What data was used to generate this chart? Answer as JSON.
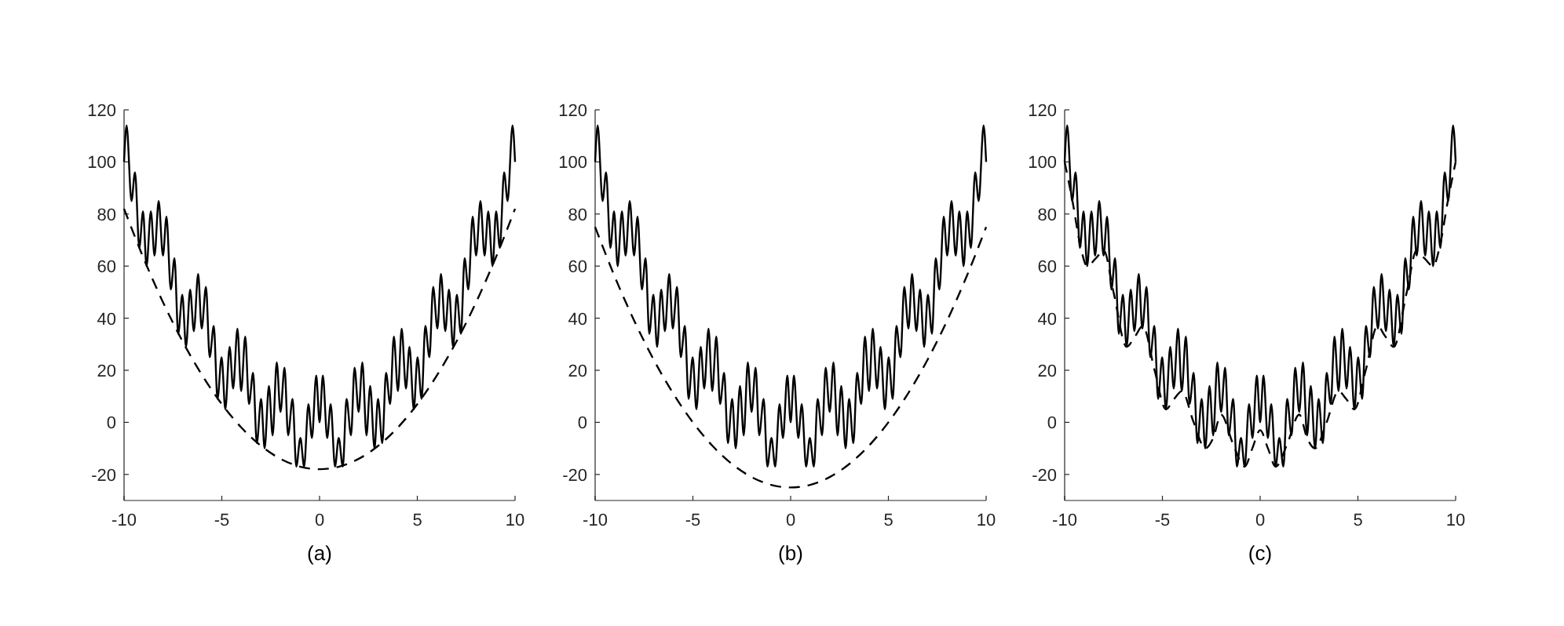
{
  "chart_data": [
    {
      "type": "line",
      "xlabel": "(a)",
      "xlim": [
        -10,
        10
      ],
      "ylim": [
        -30,
        120
      ],
      "xticks": [
        -10,
        -5,
        0,
        5,
        10
      ],
      "yticks": [
        -20,
        0,
        20,
        40,
        60,
        80,
        100,
        120
      ],
      "grid": false,
      "marker": "none",
      "series": [
        {
          "color": "#000000",
          "line_style": "solid",
          "x": [
            -10,
            -9.87,
            -9.62,
            -9.44,
            -9.22,
            -9.03,
            -8.85,
            -8.63,
            -8.44,
            -8.23,
            -8.01,
            -7.83,
            -7.61,
            -7.42,
            -7.23,
            -7.02,
            -6.83,
            -6.62,
            -6.43,
            -6.21,
            -6.03,
            -5.81,
            -5.62,
            -5.41,
            -5.22,
            -5.01,
            -4.82,
            -4.6,
            -4.42,
            -4.2,
            -4.01,
            -3.8,
            -3.61,
            -3.4,
            -3.21,
            -2.99,
            -2.81,
            -2.59,
            -2.4,
            -2.19,
            -2,
            -1.79,
            -1.61,
            -1.38,
            -1.19,
            -0.98,
            -0.79,
            -0.57,
            -0.39,
            -0.17,
            0,
            0.17,
            0.39,
            0.57,
            0.79,
            0.98,
            1.19,
            1.38,
            1.61,
            1.79,
            2,
            2.19,
            2.4,
            2.59,
            2.81,
            2.99,
            3.21,
            3.4,
            3.61,
            3.8,
            4.01,
            4.2,
            4.42,
            4.6,
            4.82,
            5.01,
            5.22,
            5.41,
            5.62,
            5.81,
            6.03,
            6.21,
            6.43,
            6.62,
            6.83,
            7.02,
            7.23,
            7.42,
            7.61,
            7.83,
            8.01,
            8.23,
            8.44,
            8.63,
            8.85,
            9.03,
            9.22,
            9.44,
            9.62,
            9.87,
            10
          ],
          "values": [
            100,
            114,
            85,
            96,
            67,
            81,
            60,
            81,
            64,
            85,
            64,
            79,
            51,
            63,
            34,
            49,
            29,
            51,
            35,
            57,
            36,
            52,
            25,
            37,
            9,
            25,
            5,
            29,
            13,
            36,
            12,
            33,
            7,
            19,
            -8,
            9,
            -10,
            14,
            -5,
            23,
            4,
            21,
            -5,
            9,
            -17,
            -6,
            -17,
            7,
            -6,
            18,
            0,
            18,
            -6,
            7,
            -17,
            -6,
            -17,
            9,
            -5,
            21,
            4,
            23,
            -5,
            14,
            -10,
            9,
            -8,
            19,
            7,
            33,
            12,
            36,
            13,
            29,
            5,
            25,
            9,
            37,
            25,
            52,
            36,
            57,
            35,
            51,
            29,
            49,
            34,
            63,
            51,
            79,
            64,
            85,
            64,
            81,
            60,
            81,
            67,
            96,
            85,
            114,
            100
          ]
        },
        {
          "color": "#000000",
          "line_style": "dashed",
          "x": [
            -10,
            -9,
            -8,
            -7,
            -6,
            -5,
            -4,
            -3,
            -2,
            -1,
            0,
            1,
            2,
            3,
            4,
            5,
            6,
            7,
            8,
            9,
            10
          ],
          "values": [
            82,
            63,
            46,
            31,
            18,
            7,
            -2,
            -9,
            -14,
            -17,
            -18,
            -17,
            -14,
            -9,
            -2,
            7,
            18,
            31,
            46,
            63,
            82
          ]
        }
      ]
    },
    {
      "type": "line",
      "xlabel": "(b)",
      "xlim": [
        -10,
        10
      ],
      "ylim": [
        -30,
        120
      ],
      "xticks": [
        -10,
        -5,
        0,
        5,
        10
      ],
      "yticks": [
        -20,
        0,
        20,
        40,
        60,
        80,
        100,
        120
      ],
      "grid": false,
      "marker": "none",
      "series": [
        {
          "color": "#000000",
          "line_style": "solid",
          "x": [
            -10,
            -9.87,
            -9.62,
            -9.44,
            -9.22,
            -9.03,
            -8.85,
            -8.63,
            -8.44,
            -8.23,
            -8.01,
            -7.83,
            -7.61,
            -7.42,
            -7.23,
            -7.02,
            -6.83,
            -6.62,
            -6.43,
            -6.21,
            -6.03,
            -5.81,
            -5.62,
            -5.41,
            -5.22,
            -5.01,
            -4.82,
            -4.6,
            -4.42,
            -4.2,
            -4.01,
            -3.8,
            -3.61,
            -3.4,
            -3.21,
            -2.99,
            -2.81,
            -2.59,
            -2.4,
            -2.19,
            -2,
            -1.79,
            -1.61,
            -1.38,
            -1.19,
            -0.98,
            -0.79,
            -0.57,
            -0.39,
            -0.17,
            0,
            0.17,
            0.39,
            0.57,
            0.79,
            0.98,
            1.19,
            1.38,
            1.61,
            1.79,
            2,
            2.19,
            2.4,
            2.59,
            2.81,
            2.99,
            3.21,
            3.4,
            3.61,
            3.8,
            4.01,
            4.2,
            4.42,
            4.6,
            4.82,
            5.01,
            5.22,
            5.41,
            5.62,
            5.81,
            6.03,
            6.21,
            6.43,
            6.62,
            6.83,
            7.02,
            7.23,
            7.42,
            7.61,
            7.83,
            8.01,
            8.23,
            8.44,
            8.63,
            8.85,
            9.03,
            9.22,
            9.44,
            9.62,
            9.87,
            10
          ],
          "values": [
            100,
            114,
            85,
            96,
            67,
            81,
            60,
            81,
            64,
            85,
            64,
            79,
            51,
            63,
            34,
            49,
            29,
            51,
            35,
            57,
            36,
            52,
            25,
            37,
            9,
            25,
            5,
            29,
            13,
            36,
            12,
            33,
            7,
            19,
            -8,
            9,
            -10,
            14,
            -5,
            23,
            4,
            21,
            -5,
            9,
            -17,
            -6,
            -17,
            7,
            -6,
            18,
            0,
            18,
            -6,
            7,
            -17,
            -6,
            -17,
            9,
            -5,
            21,
            4,
            23,
            -5,
            14,
            -10,
            9,
            -8,
            19,
            7,
            33,
            12,
            36,
            13,
            29,
            5,
            25,
            9,
            37,
            25,
            52,
            36,
            57,
            35,
            51,
            29,
            49,
            34,
            63,
            51,
            79,
            64,
            85,
            64,
            81,
            60,
            81,
            67,
            96,
            85,
            114,
            100
          ]
        },
        {
          "color": "#000000",
          "line_style": "dashed",
          "x": [
            -10,
            -9,
            -8,
            -7,
            -6,
            -5,
            -4,
            -3,
            -2,
            -1,
            0,
            1,
            2,
            3,
            4,
            5,
            6,
            7,
            8,
            9,
            10
          ],
          "values": [
            75,
            56,
            39,
            24,
            11,
            0,
            -9,
            -16,
            -21,
            -24,
            -25,
            -24,
            -21,
            -16,
            -9,
            0,
            11,
            24,
            39,
            56,
            75
          ]
        }
      ]
    },
    {
      "type": "line",
      "xlabel": "(c)",
      "xlim": [
        -10,
        10
      ],
      "ylim": [
        -30,
        120
      ],
      "xticks": [
        -10,
        -5,
        0,
        5,
        10
      ],
      "yticks": [
        -20,
        0,
        20,
        40,
        60,
        80,
        100,
        120
      ],
      "grid": false,
      "marker": "none",
      "series": [
        {
          "color": "#000000",
          "line_style": "solid",
          "x": [
            -10,
            -9.87,
            -9.62,
            -9.44,
            -9.22,
            -9.03,
            -8.85,
            -8.63,
            -8.44,
            -8.23,
            -8.01,
            -7.83,
            -7.61,
            -7.42,
            -7.23,
            -7.02,
            -6.83,
            -6.62,
            -6.43,
            -6.21,
            -6.03,
            -5.81,
            -5.62,
            -5.41,
            -5.22,
            -5.01,
            -4.82,
            -4.6,
            -4.42,
            -4.2,
            -4.01,
            -3.8,
            -3.61,
            -3.4,
            -3.21,
            -2.99,
            -2.81,
            -2.59,
            -2.4,
            -2.19,
            -2,
            -1.79,
            -1.61,
            -1.38,
            -1.19,
            -0.98,
            -0.79,
            -0.57,
            -0.39,
            -0.17,
            0,
            0.17,
            0.39,
            0.57,
            0.79,
            0.98,
            1.19,
            1.38,
            1.61,
            1.79,
            2,
            2.19,
            2.4,
            2.59,
            2.81,
            2.99,
            3.21,
            3.4,
            3.61,
            3.8,
            4.01,
            4.2,
            4.42,
            4.6,
            4.82,
            5.01,
            5.22,
            5.41,
            5.62,
            5.81,
            6.03,
            6.21,
            6.43,
            6.62,
            6.83,
            7.02,
            7.23,
            7.42,
            7.61,
            7.83,
            8.01,
            8.23,
            8.44,
            8.63,
            8.85,
            9.03,
            9.22,
            9.44,
            9.62,
            9.87,
            10
          ],
          "values": [
            100,
            114,
            85,
            96,
            67,
            81,
            60,
            81,
            64,
            85,
            64,
            79,
            51,
            63,
            34,
            49,
            29,
            51,
            35,
            57,
            36,
            52,
            25,
            37,
            9,
            25,
            5,
            29,
            13,
            36,
            12,
            33,
            7,
            19,
            -8,
            9,
            -10,
            14,
            -5,
            23,
            4,
            21,
            -5,
            9,
            -17,
            -6,
            -17,
            7,
            -6,
            18,
            0,
            18,
            -6,
            7,
            -17,
            -6,
            -17,
            9,
            -5,
            21,
            4,
            23,
            -5,
            14,
            -10,
            9,
            -8,
            19,
            7,
            33,
            12,
            36,
            13,
            29,
            5,
            25,
            9,
            37,
            25,
            52,
            36,
            57,
            35,
            51,
            29,
            49,
            34,
            63,
            51,
            79,
            64,
            85,
            64,
            81,
            60,
            81,
            67,
            96,
            85,
            114,
            100
          ]
        },
        {
          "color": "#000000",
          "line_style": "dashed",
          "x": [
            -10,
            -9.6,
            -9.2,
            -8.85,
            -8.4,
            -8,
            -7.5,
            -6.83,
            -6.4,
            -6,
            -5.4,
            -4.82,
            -4.4,
            -4,
            -3.4,
            -2.81,
            -2.4,
            -2,
            -1.4,
            -0.79,
            -0.4,
            0,
            0.4,
            0.79,
            1.4,
            2,
            2.4,
            2.81,
            3.4,
            4,
            4.4,
            4.82,
            5.4,
            6,
            6.4,
            6.83,
            7.5,
            8,
            8.4,
            8.85,
            9.2,
            9.6,
            10
          ],
          "values": [
            100,
            85,
            68,
            60,
            63,
            66,
            50,
            29,
            33,
            37,
            20,
            5,
            9,
            12,
            0,
            -10,
            -6,
            3,
            -8,
            -17,
            -10,
            -3,
            -10,
            -17,
            -8,
            3,
            -6,
            -10,
            0,
            12,
            9,
            5,
            20,
            37,
            33,
            29,
            50,
            66,
            63,
            60,
            68,
            85,
            100
          ]
        }
      ]
    }
  ]
}
